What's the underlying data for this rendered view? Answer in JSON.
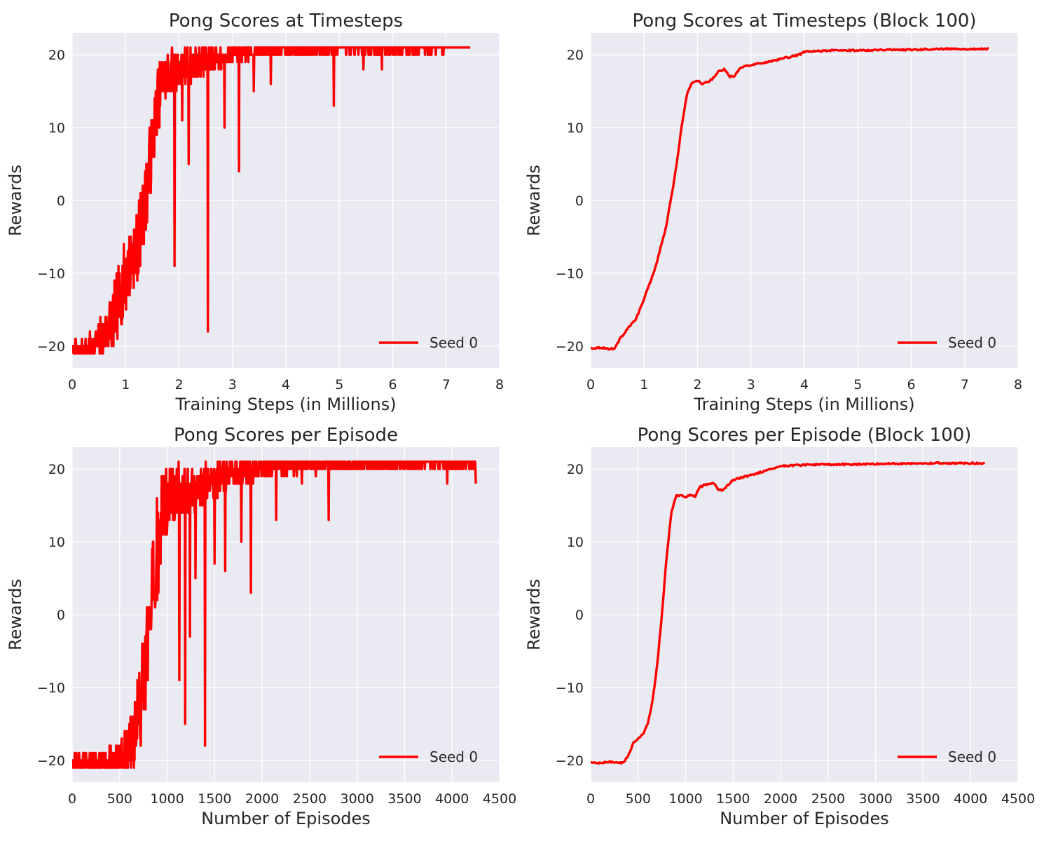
{
  "chart_data": [
    {
      "id": "tl",
      "type": "line",
      "title": "Pong Scores at Timesteps",
      "xlabel": "Training Steps (in Millions)",
      "ylabel": "Rewards",
      "xlim": [
        0,
        8
      ],
      "ylim": [
        -23,
        23
      ],
      "xticks": [
        0,
        1,
        2,
        3,
        4,
        5,
        6,
        7,
        8
      ],
      "xtick_labels": [
        "0",
        "1",
        "2",
        "3",
        "4",
        "5",
        "6",
        "7",
        "8"
      ],
      "yticks": [
        -20,
        -10,
        0,
        10,
        20
      ],
      "ytick_labels": [
        "−20",
        "−10",
        "0",
        "10",
        "20"
      ],
      "grid": true,
      "legend_position": "lower-right",
      "series": [
        {
          "name": "Seed 0",
          "color": "#ff0000",
          "style": "noisy",
          "x": [
            0.0,
            0.2,
            0.4,
            0.6,
            0.8,
            1.0,
            1.2,
            1.3,
            1.4,
            1.5,
            1.6,
            1.7,
            1.8,
            2.0,
            2.2,
            2.4,
            2.6,
            2.8,
            3.0,
            3.2,
            3.5,
            3.8,
            4.0,
            4.5,
            5.0,
            5.5,
            6.0,
            6.5,
            7.0,
            7.45
          ],
          "y": [
            -20.8,
            -20.6,
            -20.2,
            -18.5,
            -15.5,
            -10.5,
            -6.5,
            -3.0,
            1.5,
            8.0,
            14.0,
            16.5,
            17.5,
            18.0,
            18.5,
            19.0,
            19.5,
            19.5,
            20.0,
            20.2,
            20.5,
            20.6,
            20.7,
            20.8,
            20.8,
            20.8,
            20.8,
            20.8,
            20.8,
            21.0
          ],
          "noise": [
            0.8,
            1.0,
            1.3,
            2.0,
            2.5,
            3.0,
            3.0,
            3.0,
            3.0,
            3.0,
            2.5,
            2.0,
            2.0,
            1.6,
            1.4,
            1.2,
            1.0,
            0.8,
            0.8,
            0.6,
            0.5,
            0.4,
            0.4,
            0.3,
            0.3,
            0.3,
            0.3,
            0.3,
            0.2,
            0.0
          ],
          "spikes": [
            [
              1.92,
              -9
            ],
            [
              2.18,
              5
            ],
            [
              2.54,
              -18
            ],
            [
              3.12,
              4
            ],
            [
              4.9,
              13
            ],
            [
              1.63,
              10
            ],
            [
              2.06,
              11
            ],
            [
              2.85,
              10
            ],
            [
              3.4,
              15
            ],
            [
              3.72,
              16
            ],
            [
              5.45,
              18
            ],
            [
              5.8,
              18
            ]
          ]
        }
      ]
    },
    {
      "id": "tr",
      "type": "line",
      "title": "Pong Scores at Timesteps (Block 100)",
      "xlabel": "Training Steps (in Millions)",
      "ylabel": "Rewards",
      "xlim": [
        0,
        8
      ],
      "ylim": [
        -23,
        23
      ],
      "xticks": [
        0,
        1,
        2,
        3,
        4,
        5,
        6,
        7,
        8
      ],
      "xtick_labels": [
        "0",
        "1",
        "2",
        "3",
        "4",
        "5",
        "6",
        "7",
        "8"
      ],
      "yticks": [
        -20,
        -10,
        0,
        10,
        20
      ],
      "ytick_labels": [
        "−20",
        "−10",
        "0",
        "10",
        "20"
      ],
      "grid": true,
      "legend_position": "lower-right",
      "series": [
        {
          "name": "Seed 0",
          "color": "#ff0000",
          "style": "smooth",
          "x": [
            0.0,
            0.2,
            0.35,
            0.45,
            0.55,
            0.7,
            0.85,
            1.0,
            1.2,
            1.4,
            1.5,
            1.6,
            1.7,
            1.8,
            1.9,
            2.0,
            2.1,
            2.2,
            2.3,
            2.4,
            2.5,
            2.6,
            2.7,
            2.8,
            3.0,
            3.3,
            3.6,
            3.9,
            4.0,
            4.5,
            5.0,
            5.5,
            6.0,
            6.5,
            7.0,
            7.45
          ],
          "y": [
            -20.3,
            -20.2,
            -20.4,
            -20.3,
            -19.0,
            -17.5,
            -16.3,
            -13.5,
            -9.5,
            -4.0,
            0.0,
            4.5,
            10.0,
            14.5,
            16.2,
            16.5,
            16.0,
            16.3,
            16.8,
            17.8,
            18.0,
            17.0,
            17.1,
            18.3,
            18.6,
            19.0,
            19.5,
            20.0,
            20.4,
            20.6,
            20.6,
            20.7,
            20.7,
            20.8,
            20.8,
            20.8
          ]
        }
      ]
    },
    {
      "id": "bl",
      "type": "line",
      "title": "Pong Scores per Episode",
      "xlabel": "Number of Episodes",
      "ylabel": "Rewards",
      "xlim": [
        0,
        4500
      ],
      "ylim": [
        -23,
        23
      ],
      "xticks": [
        0,
        500,
        1000,
        1500,
        2000,
        2500,
        3000,
        3500,
        4000,
        4500
      ],
      "xtick_labels": [
        "0",
        "500",
        "1000",
        "1500",
        "2000",
        "2500",
        "3000",
        "3500",
        "4000",
        "4500"
      ],
      "yticks": [
        -20,
        -10,
        0,
        10,
        20
      ],
      "ytick_labels": [
        "−20",
        "−10",
        "0",
        "10",
        "20"
      ],
      "grid": true,
      "legend_position": "lower-right",
      "series": [
        {
          "name": "Seed 0",
          "color": "#ff0000",
          "style": "noisy",
          "x": [
            0,
            200,
            350,
            450,
            550,
            650,
            700,
            750,
            800,
            850,
            900,
            950,
            1000,
            1100,
            1200,
            1300,
            1400,
            1500,
            1700,
            2000,
            2300,
            2600,
            3000,
            3500,
            4000,
            4250
          ],
          "y": [
            -20.6,
            -20.5,
            -20.4,
            -20.3,
            -19.0,
            -17.0,
            -14.0,
            -10.0,
            -5.0,
            2.0,
            9.0,
            14.0,
            16.2,
            16.5,
            16.5,
            17.5,
            18.0,
            18.6,
            19.5,
            20.2,
            20.5,
            20.6,
            20.7,
            20.8,
            20.8,
            20.8
          ],
          "noise": [
            1.0,
            1.1,
            1.2,
            1.5,
            2.2,
            3.0,
            3.5,
            4.0,
            4.5,
            5.0,
            4.5,
            3.5,
            3.0,
            2.5,
            2.0,
            1.8,
            1.6,
            1.4,
            1.2,
            0.9,
            0.8,
            0.7,
            0.6,
            0.5,
            0.4,
            0.4
          ],
          "spikes": [
            [
              1130,
              -9
            ],
            [
              1190,
              -15
            ],
            [
              1400,
              -18
            ],
            [
              1240,
              -3
            ],
            [
              1880,
              3
            ],
            [
              2150,
              13
            ],
            [
              2700,
              13
            ],
            [
              1300,
              5
            ],
            [
              1500,
              7
            ],
            [
              1610,
              6
            ],
            [
              1780,
              10
            ],
            [
              2420,
              18
            ],
            [
              3950,
              18
            ],
            [
              4250,
              18
            ]
          ]
        }
      ]
    },
    {
      "id": "br",
      "type": "line",
      "title": "Pong Scores per Episode (Block 100)",
      "xlabel": "Number of Episodes",
      "ylabel": "Rewards",
      "xlim": [
        0,
        4500
      ],
      "ylim": [
        -23,
        23
      ],
      "xticks": [
        0,
        500,
        1000,
        1500,
        2000,
        2500,
        3000,
        3500,
        4000,
        4500
      ],
      "xtick_labels": [
        "0",
        "500",
        "1000",
        "1500",
        "2000",
        "2500",
        "3000",
        "3500",
        "4000",
        "4500"
      ],
      "yticks": [
        -20,
        -10,
        0,
        10,
        20
      ],
      "ytick_labels": [
        "−20",
        "−10",
        "0",
        "10",
        "20"
      ],
      "grid": true,
      "legend_position": "lower-right",
      "series": [
        {
          "name": "Seed 0",
          "color": "#ff0000",
          "style": "smooth",
          "x": [
            0,
            100,
            200,
            300,
            350,
            400,
            450,
            500,
            550,
            600,
            650,
            700,
            750,
            800,
            850,
            900,
            950,
            1000,
            1050,
            1100,
            1150,
            1200,
            1300,
            1350,
            1400,
            1500,
            1700,
            1900,
            2000,
            2300,
            2600,
            3000,
            3500,
            4000,
            4150
          ],
          "y": [
            -20.3,
            -20.4,
            -20.2,
            -20.4,
            -20.3,
            -19.2,
            -17.6,
            -17.0,
            -16.5,
            -15.0,
            -12.0,
            -7.0,
            0.0,
            8.0,
            14.0,
            16.3,
            16.5,
            16.0,
            16.5,
            16.2,
            17.5,
            17.8,
            18.0,
            17.0,
            17.2,
            18.5,
            19.2,
            20.0,
            20.4,
            20.6,
            20.6,
            20.7,
            20.8,
            20.8,
            20.8
          ]
        }
      ]
    }
  ]
}
